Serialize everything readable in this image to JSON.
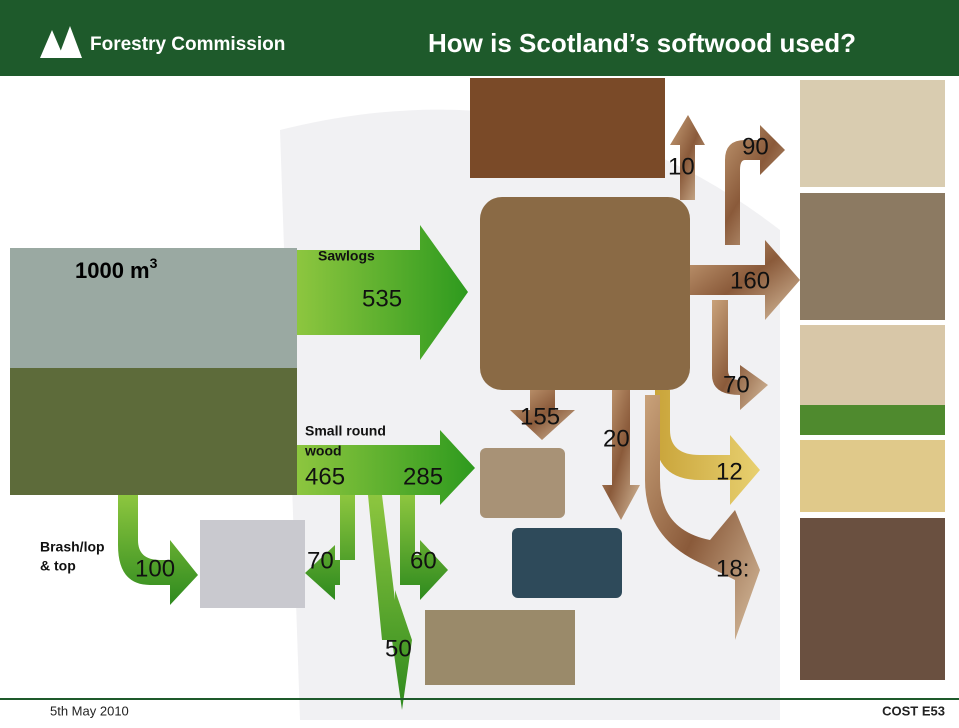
{
  "header": {
    "organisation": "Forestry Commission",
    "title": "How is Scotland’s softwood used?"
  },
  "input": {
    "label": "1000 m",
    "superscript": "3"
  },
  "flows": {
    "sawlogs": {
      "label": "Sawlogs",
      "value": "535"
    },
    "small_round_wood": {
      "label_lines": [
        "Small round",
        "wood"
      ],
      "value": "465",
      "to_board": "285",
      "to_stove": "70",
      "to_fencing": "60",
      "to_poles": "50"
    },
    "brash": {
      "label_lines": [
        "Brash/lop",
        "& top"
      ],
      "value": "100"
    },
    "sawmill": {
      "to_board": "155",
      "to_paper": "20",
      "to_construction": "10",
      "to_pallets": "90",
      "to_housing": "160",
      "to_fencing": "70",
      "to_chips": "12",
      "to_soil": "18:"
    }
  },
  "footer": {
    "date": "5th May 2010",
    "project": "COST E53"
  }
}
